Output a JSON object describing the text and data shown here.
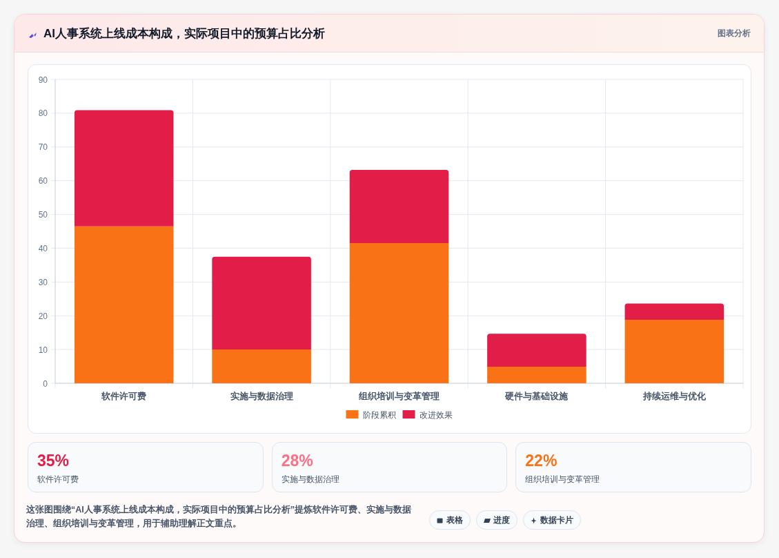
{
  "chart_data": [
    {
      "type": "bar",
      "title": "AI人事系统上线成本构成，实际项目中的预算占比分析",
      "categories": [
        "软件许可费",
        "实施与数据治理",
        "组织培训与变革管理",
        "硬件与基础设施",
        "持续运维与优化"
      ],
      "series": [
        {
          "name": "阶段累积",
          "color": "#f97316",
          "values": [
            46.5,
            10,
            41.5,
            4.9,
            18.8
          ]
        },
        {
          "name": "改进效果",
          "color": "#e11d48",
          "values": [
            34.4,
            27.5,
            21.7,
            9.8,
            4.8
          ]
        }
      ],
      "stacked": true,
      "ylim": [
        0,
        90
      ],
      "yticks": [
        0,
        10,
        20,
        30,
        40,
        50,
        60,
        70,
        80,
        90
      ],
      "grid": true,
      "legend": "bottom",
      "annotations": [
        "图表分析",
        "这张图围绕“AI人事系统上线成本构成，实际项目中的预算占比分析”提炼软件许可费、实施与数据治理、组织培训与变革管理，用于辅助理解正文重点。",
        "表格",
        "进度",
        "数据卡片"
      ]
    },
    {
      "type": "other",
      "title": "35%",
      "subtitle": "软件许可费",
      "color": "#e11d48"
    },
    {
      "type": "other",
      "title": "28%",
      "subtitle": "实施与数据治理",
      "color": "#f87185"
    },
    {
      "type": "other",
      "title": "22%",
      "subtitle": "组织培训与变革管理",
      "color": "#f97316"
    }
  ]
}
